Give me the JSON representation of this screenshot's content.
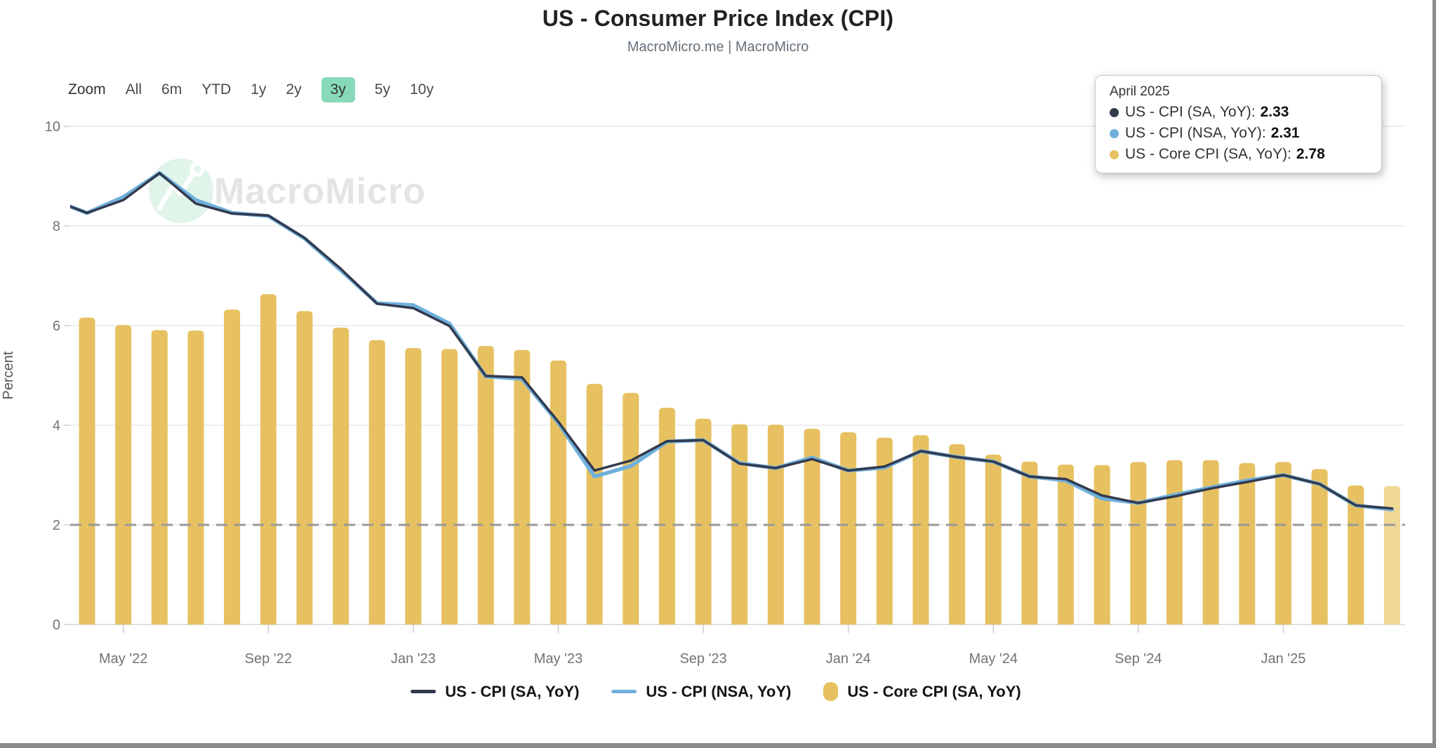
{
  "header": {
    "title": "US - Consumer Price Index (CPI)",
    "subtitle": "MacroMicro.me | MacroMicro"
  },
  "toolbar": {
    "zoom_label": "Zoom",
    "ranges": [
      "All",
      "6m",
      "YTD",
      "1y",
      "2y",
      "3y",
      "5y",
      "10y"
    ],
    "active_range": "3y",
    "active_bg_color": "#87d9b8"
  },
  "watermark": {
    "text": "MacroMicro",
    "circle_color": "#e0f4ea",
    "text_color": "#e4e4e4"
  },
  "tooltip": {
    "date": "April 2025",
    "rows": [
      {
        "label": "US - CPI (SA, YoY):",
        "value": "2.33",
        "color": "#333a4d"
      },
      {
        "label": "US - CPI (NSA, YoY):",
        "value": "2.31",
        "color": "#6fb0dc"
      },
      {
        "label": "US - Core CPI (SA, YoY):",
        "value": "2.78",
        "color": "#e7c161"
      }
    ]
  },
  "y_axis": {
    "label": "Percent",
    "ticks": [
      0,
      2,
      4,
      6,
      8,
      10
    ]
  },
  "x_axis": {
    "labels": [
      "May '22",
      "Sep '22",
      "Jan '23",
      "May '23",
      "Sep '23",
      "Jan '24",
      "May '24",
      "Sep '24",
      "Jan '25"
    ]
  },
  "legend": [
    {
      "label": "US - CPI (SA, YoY)",
      "marker": "line",
      "color": "#333a4d"
    },
    {
      "label": "US - CPI (NSA, YoY)",
      "marker": "line",
      "color": "#6fb0dc"
    },
    {
      "label": "US - Core CPI (SA, YoY)",
      "marker": "bar",
      "color": "#e7c161"
    }
  ],
  "chart_data": {
    "type": "combo",
    "title": "US - Consumer Price Index (CPI)",
    "ylabel": "Percent",
    "ylim": [
      0,
      10
    ],
    "grid": true,
    "reference_line": {
      "value": 2,
      "color": "#999999",
      "style": "dashed"
    },
    "note_first_point_clipped_at_left_edge": true,
    "hovered_point": "Apr '25",
    "hovered_bar_color": "#efd794",
    "x": [
      "Mar '22",
      "Apr '22",
      "May '22",
      "Jun '22",
      "Jul '22",
      "Aug '22",
      "Sep '22",
      "Oct '22",
      "Nov '22",
      "Dec '22",
      "Jan '23",
      "Feb '23",
      "Mar '23",
      "Apr '23",
      "May '23",
      "Jun '23",
      "Jul '23",
      "Aug '23",
      "Sep '23",
      "Oct '23",
      "Nov '23",
      "Dec '23",
      "Jan '24",
      "Feb '24",
      "Mar '24",
      "Apr '24",
      "May '24",
      "Jun '24",
      "Jul '24",
      "Aug '24",
      "Sep '24",
      "Oct '24",
      "Nov '24",
      "Dec '24",
      "Jan '25",
      "Feb '25",
      "Mar '25",
      "Apr '25"
    ],
    "series": [
      {
        "name": "US - CPI (SA, YoY)",
        "type": "line",
        "color": "#333a4d",
        "width": 3.5,
        "values": [
          8.54,
          8.26,
          8.52,
          9.06,
          8.45,
          8.25,
          8.21,
          7.76,
          7.14,
          6.44,
          6.35,
          5.99,
          4.99,
          4.96,
          4.07,
          3.09,
          3.29,
          3.68,
          3.7,
          3.23,
          3.14,
          3.32,
          3.09,
          3.17,
          3.48,
          3.36,
          3.27,
          2.97,
          2.92,
          2.59,
          2.44,
          2.57,
          2.73,
          2.86,
          3.0,
          2.82,
          2.39,
          2.33
        ]
      },
      {
        "name": "US - CPI (NSA, YoY)",
        "type": "line",
        "color": "#6fb0dc",
        "width": 5.5,
        "values": [
          8.54,
          8.26,
          8.58,
          9.06,
          8.52,
          8.26,
          8.2,
          7.75,
          7.11,
          6.45,
          6.41,
          6.04,
          4.98,
          4.93,
          4.05,
          2.97,
          3.18,
          3.67,
          3.7,
          3.24,
          3.14,
          3.35,
          3.09,
          3.15,
          3.48,
          3.36,
          3.27,
          2.97,
          2.89,
          2.53,
          2.44,
          2.6,
          2.75,
          2.89,
          3.0,
          2.82,
          2.39,
          2.31
        ]
      },
      {
        "name": "US - Core CPI (SA, YoY)",
        "type": "bar",
        "color": "#e7c161",
        "values": [
          null,
          6.16,
          6.01,
          5.91,
          5.9,
          6.32,
          6.63,
          6.29,
          5.96,
          5.71,
          5.55,
          5.53,
          5.59,
          5.51,
          5.3,
          4.83,
          4.65,
          4.35,
          4.13,
          4.02,
          4.01,
          3.93,
          3.86,
          3.75,
          3.8,
          3.62,
          3.41,
          3.27,
          3.21,
          3.2,
          3.26,
          3.3,
          3.3,
          3.24,
          3.26,
          3.12,
          2.79,
          2.78
        ]
      }
    ]
  }
}
